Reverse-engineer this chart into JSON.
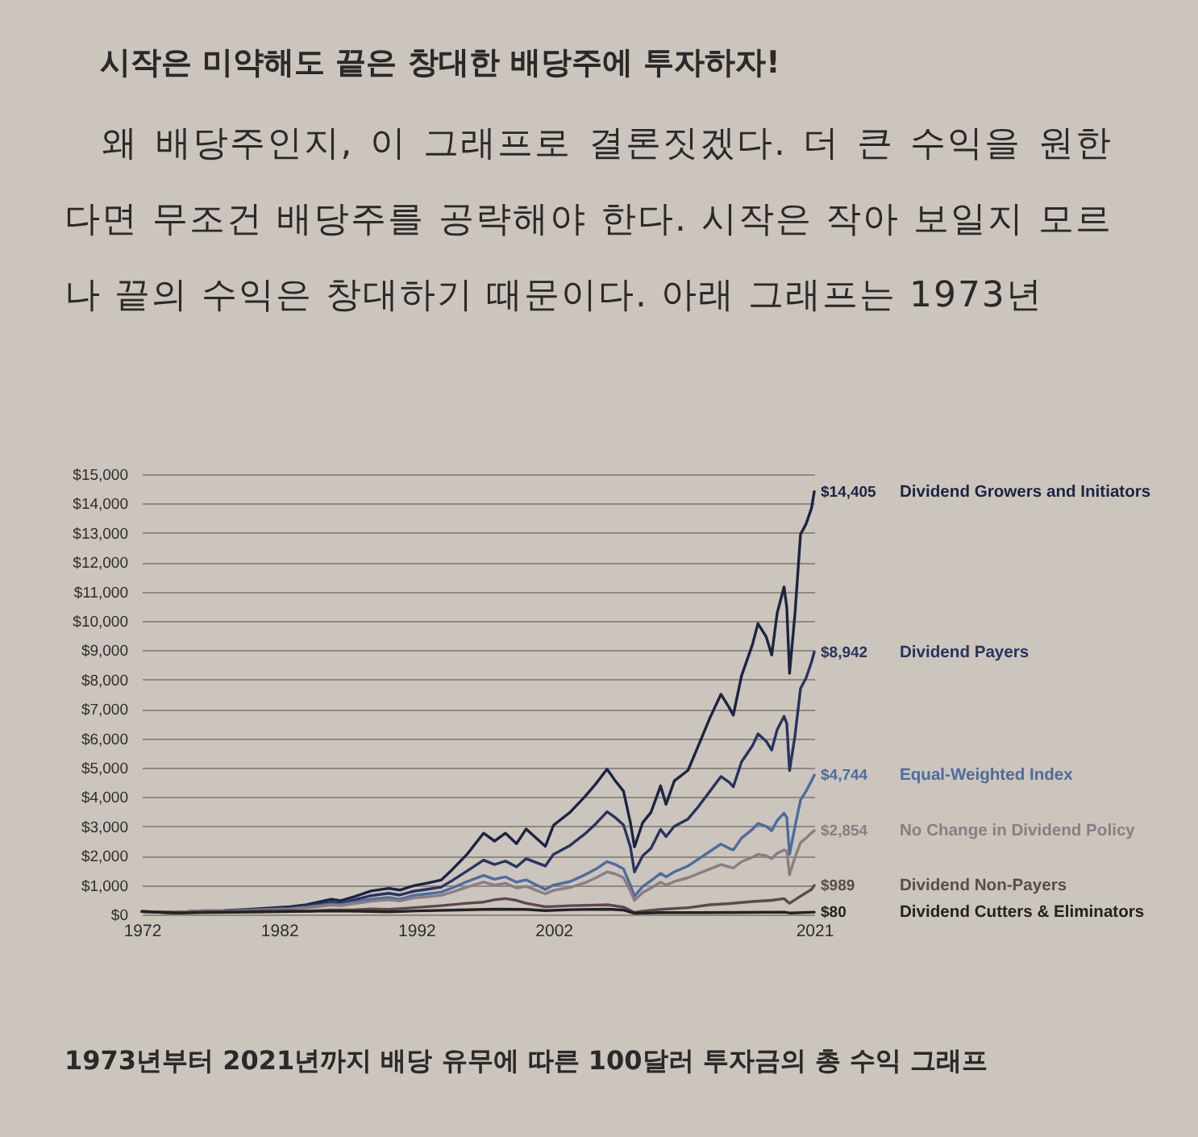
{
  "chart_data": {
    "type": "line",
    "title": "시작은 미약해도 끝은 창대한 배당주에 투자하자!",
    "subtitle": "왜 배당주인지, 이 그래프로 결론짓겠다. 더 큰 수익을 원한다면 무조건 배당주를 공략해야 한다. 시작은 작아 보일지 모르나 끝의 수익은 창대하기 때문이다. 아래 그래프는 1973년",
    "annotations": [
      "1973년부터 2021년까지 배당 유무에 따른 100달러 투자금의 총 수익 그래프"
    ],
    "xlim": [
      1972,
      2021
    ],
    "xticks": [
      1972,
      1982,
      1992,
      2002,
      2021
    ],
    "ylim": [
      0,
      15000
    ],
    "yticks": [
      {
        "value": 0,
        "label": "$0"
      },
      {
        "value": 1000,
        "label": "$1,000"
      },
      {
        "value": 2000,
        "label": "$2,000"
      },
      {
        "value": 3000,
        "label": "$3,000"
      },
      {
        "value": 4000,
        "label": "$4,000"
      },
      {
        "value": 5000,
        "label": "$5,000"
      },
      {
        "value": 6000,
        "label": "$6,000"
      },
      {
        "value": 7000,
        "label": "$7,000"
      },
      {
        "value": 8000,
        "label": "$8,000"
      },
      {
        "value": 9000,
        "label": "$9,000"
      },
      {
        "value": 10000,
        "label": "$10,000"
      },
      {
        "value": 11000,
        "label": "$11,000"
      },
      {
        "value": 12000,
        "label": "$12,000"
      },
      {
        "value": 13000,
        "label": "$13,000"
      },
      {
        "value": 14000,
        "label": "$14,000"
      },
      {
        "value": 15000,
        "label": "$15,000"
      }
    ],
    "grid": "y",
    "legend": false,
    "series": [
      {
        "name": "Dividend Growers and Initiators",
        "color": "#1c2442",
        "x": [
          1972,
          1974.5,
          1976,
          1978,
          1980,
          1982.8,
          1984,
          1985.8,
          1986.5,
          1987.5,
          1988.7,
          1990,
          1990.8,
          1991.8,
          1992.8,
          1993.8,
          1994.6,
          1995.7,
          1996.9,
          1997.7,
          1998.5,
          1999.3,
          2000,
          2001.4,
          2002,
          2003.2,
          2004.3,
          2005.1,
          2005.9,
          2006.5,
          2007.1,
          2007.6,
          2007.9,
          2008.5,
          2009.1,
          2009.8,
          2010.2,
          2010.8,
          2011.8,
          2012.6,
          2013.4,
          2014.2,
          2014.8,
          2015.1,
          2015.7,
          2016.5,
          2016.9,
          2017.5,
          2017.9,
          2018.3,
          2018.8,
          2019,
          2019.2,
          2019.6,
          2020,
          2020.4,
          2020.8,
          2021
        ],
        "values": [
          100,
          70,
          120,
          130,
          180,
          260,
          330,
          520,
          470,
          610,
          800,
          890,
          830,
          980,
          1070,
          1170,
          1520,
          2050,
          2770,
          2500,
          2770,
          2410,
          2910,
          2320,
          3040,
          3480,
          4020,
          4460,
          4950,
          4550,
          4200,
          3130,
          2300,
          3130,
          3480,
          4380,
          3750,
          4550,
          4910,
          5800,
          6700,
          7500,
          7050,
          6790,
          8130,
          9200,
          9910,
          9460,
          8840,
          10270,
          11160,
          10450,
          8210,
          10270,
          12950,
          13300,
          13840,
          14405
        ],
        "value_labels": [
          null,
          null,
          null,
          null,
          null,
          null,
          null,
          null,
          null,
          null,
          null,
          null,
          null,
          null,
          null,
          null,
          null,
          null,
          null,
          null,
          null,
          null,
          null,
          null,
          null,
          null,
          null,
          null,
          null,
          null,
          null,
          null,
          null,
          null,
          null,
          null,
          null,
          null,
          null,
          null,
          null,
          null,
          null,
          null,
          null,
          null,
          null,
          null,
          null,
          null,
          null,
          null,
          null,
          null,
          null,
          null,
          null,
          "$14,405"
        ]
      },
      {
        "name": "Dividend Payers",
        "color": "#28345e",
        "x": [
          1972,
          1974.5,
          1976,
          1978,
          1980,
          1982.8,
          1984,
          1985.8,
          1986.5,
          1987.5,
          1988.7,
          1990,
          1990.8,
          1991.8,
          1992.8,
          1993.8,
          1994.6,
          1995.7,
          1996.9,
          1997.7,
          1998.5,
          1999.3,
          2000,
          2001.4,
          2002,
          2003.2,
          2004.3,
          2005.1,
          2005.9,
          2006.5,
          2007.1,
          2007.6,
          2007.9,
          2008.5,
          2009.1,
          2009.8,
          2010.2,
          2010.8,
          2011.8,
          2012.6,
          2013.4,
          2014.2,
          2014.8,
          2015.1,
          2015.7,
          2016.5,
          2016.9,
          2017.5,
          2017.9,
          2018.3,
          2018.8,
          2019,
          2019.2,
          2019.6,
          2020,
          2020.4,
          2020.8,
          2021
        ],
        "values": [
          100,
          70,
          110,
          120,
          160,
          230,
          290,
          420,
          390,
          500,
          640,
          720,
          660,
          790,
          860,
          930,
          1150,
          1480,
          1850,
          1700,
          1820,
          1620,
          1900,
          1650,
          2050,
          2350,
          2750,
          3100,
          3500,
          3300,
          3050,
          2300,
          1450,
          2000,
          2250,
          2900,
          2650,
          3000,
          3250,
          3700,
          4200,
          4700,
          4500,
          4350,
          5200,
          5750,
          6150,
          5900,
          5600,
          6300,
          6750,
          6500,
          4900,
          6100,
          7700,
          8050,
          8600,
          8942
        ],
        "value_labels": [
          null,
          null,
          null,
          null,
          null,
          null,
          null,
          null,
          null,
          null,
          null,
          null,
          null,
          null,
          null,
          null,
          null,
          null,
          null,
          null,
          null,
          null,
          null,
          null,
          null,
          null,
          null,
          null,
          null,
          null,
          null,
          null,
          null,
          null,
          null,
          null,
          null,
          null,
          null,
          null,
          null,
          null,
          null,
          null,
          null,
          null,
          null,
          null,
          null,
          null,
          null,
          null,
          null,
          null,
          null,
          null,
          null,
          "$8,942"
        ]
      },
      {
        "name": "Equal-Weighted Index",
        "color": "#4e6c9c",
        "x": [
          1972,
          1974.5,
          1976,
          1978,
          1980,
          1982.8,
          1984,
          1985.8,
          1986.5,
          1987.5,
          1988.7,
          1990,
          1990.8,
          1991.8,
          1992.8,
          1993.8,
          1994.6,
          1995.7,
          1996.9,
          1997.7,
          1998.5,
          1999.3,
          2000,
          2001.4,
          2002,
          2003.2,
          2004.3,
          2005.1,
          2005.9,
          2006.5,
          2007.1,
          2007.6,
          2007.9,
          2008.5,
          2009.1,
          2009.8,
          2010.2,
          2010.8,
          2011.8,
          2012.6,
          2013.4,
          2014.2,
          2014.8,
          2015.1,
          2015.7,
          2016.5,
          2016.9,
          2017.5,
          2017.9,
          2018.3,
          2018.8,
          2019,
          2019.2,
          2019.6,
          2020,
          2020.4,
          2020.8,
          2021
        ],
        "values": [
          100,
          60,
          110,
          120,
          150,
          200,
          250,
          360,
          340,
          420,
          520,
          580,
          520,
          650,
          700,
          760,
          900,
          1120,
          1330,
          1200,
          1280,
          1100,
          1180,
          850,
          1000,
          1120,
          1350,
          1550,
          1800,
          1700,
          1550,
          1000,
          620,
          950,
          1150,
          1400,
          1280,
          1450,
          1650,
          1900,
          2150,
          2400,
          2250,
          2200,
          2600,
          2900,
          3100,
          3000,
          2850,
          3200,
          3450,
          3300,
          2050,
          3000,
          3900,
          4200,
          4550,
          4744
        ],
        "value_labels": [
          null,
          null,
          null,
          null,
          null,
          null,
          null,
          null,
          null,
          null,
          null,
          null,
          null,
          null,
          null,
          null,
          null,
          null,
          null,
          null,
          null,
          null,
          null,
          null,
          null,
          null,
          null,
          null,
          null,
          null,
          null,
          null,
          null,
          null,
          null,
          null,
          null,
          null,
          null,
          null,
          null,
          null,
          null,
          null,
          null,
          null,
          null,
          null,
          null,
          null,
          null,
          null,
          null,
          null,
          null,
          null,
          null,
          "$4,744"
        ]
      },
      {
        "name": "No Change in Dividend Policy",
        "color": "#8a7d85",
        "x": [
          1972,
          1974.5,
          1976,
          1978,
          1980,
          1982.8,
          1984,
          1985.8,
          1986.5,
          1987.5,
          1988.7,
          1990,
          1990.8,
          1991.8,
          1992.8,
          1993.8,
          1994.6,
          1995.7,
          1996.9,
          1997.7,
          1998.5,
          1999.3,
          2000,
          2001.4,
          2002,
          2003.2,
          2004.3,
          2005.1,
          2005.9,
          2006.5,
          2007.1,
          2007.6,
          2007.9,
          2008.5,
          2009.1,
          2009.8,
          2010.2,
          2010.8,
          2011.8,
          2012.6,
          2013.4,
          2014.2,
          2014.8,
          2015.1,
          2015.7,
          2016.5,
          2016.9,
          2017.5,
          2017.9,
          2018.3,
          2018.8,
          2019,
          2019.2,
          2019.6,
          2020,
          2020.4,
          2020.8,
          2021
        ],
        "values": [
          100,
          70,
          110,
          110,
          140,
          180,
          220,
          320,
          300,
          370,
          450,
          500,
          460,
          560,
          600,
          650,
          760,
          930,
          1100,
          1000,
          1060,
          900,
          960,
          700,
          820,
          920,
          1080,
          1250,
          1450,
          1380,
          1250,
          800,
          480,
          750,
          900,
          1100,
          1000,
          1120,
          1250,
          1400,
          1550,
          1700,
          1620,
          1580,
          1800,
          1950,
          2050,
          2000,
          1900,
          2080,
          2200,
          2150,
          1350,
          1950,
          2450,
          2600,
          2780,
          2854
        ],
        "value_labels": [
          null,
          null,
          null,
          null,
          null,
          null,
          null,
          null,
          null,
          null,
          null,
          null,
          null,
          null,
          null,
          null,
          null,
          null,
          null,
          null,
          null,
          null,
          null,
          null,
          null,
          null,
          null,
          null,
          null,
          null,
          null,
          null,
          null,
          null,
          null,
          null,
          null,
          null,
          null,
          null,
          null,
          null,
          null,
          null,
          null,
          null,
          null,
          null,
          null,
          null,
          null,
          null,
          null,
          null,
          null,
          null,
          null,
          "$2,854"
        ]
      },
      {
        "name": "Dividend Non-Payers",
        "color": "#5c4a4f",
        "x": [
          1972,
          1974.5,
          1976,
          1978,
          1980,
          1982.8,
          1984,
          1985.8,
          1987.5,
          1988.7,
          1990,
          1991.8,
          1993.8,
          1995.7,
          1996.9,
          1997.7,
          1998.5,
          1999.3,
          2000,
          2001.4,
          2002,
          2003.2,
          2004.3,
          2005.1,
          2005.9,
          2007.1,
          2007.9,
          2008.5,
          2009.8,
          2011.8,
          2013.4,
          2014.8,
          2016.5,
          2017.9,
          2018.8,
          2019.2,
          2020,
          2020.8,
          2021
        ],
        "values": [
          100,
          50,
          80,
          90,
          120,
          130,
          110,
          150,
          160,
          190,
          170,
          230,
          300,
          380,
          420,
          500,
          540,
          480,
          380,
          260,
          270,
          300,
          310,
          320,
          330,
          250,
          70,
          110,
          170,
          230,
          330,
          370,
          440,
          480,
          540,
          380,
          620,
          850,
          989
        ],
        "value_labels": [
          null,
          null,
          null,
          null,
          null,
          null,
          null,
          null,
          null,
          null,
          null,
          null,
          null,
          null,
          null,
          null,
          null,
          null,
          null,
          null,
          null,
          null,
          null,
          null,
          null,
          null,
          null,
          null,
          null,
          null,
          null,
          null,
          null,
          null,
          null,
          null,
          null,
          null,
          "$989"
        ]
      },
      {
        "name": "Dividend Cutters & Eliminators",
        "color": "#232222",
        "x": [
          1972,
          1974.5,
          1977,
          1980,
          1983,
          1986,
          1988,
          1990,
          1992,
          1995,
          1997.7,
          2000,
          2001.4,
          2003.2,
          2005.9,
          2007.1,
          2007.9,
          2009.8,
          2012.6,
          2015.7,
          2018.8,
          2019.2,
          2021
        ],
        "values": [
          100,
          50,
          70,
          80,
          100,
          120,
          110,
          90,
          120,
          150,
          180,
          170,
          130,
          160,
          180,
          150,
          40,
          60,
          60,
          70,
          80,
          50,
          80
        ],
        "value_labels": [
          null,
          null,
          null,
          null,
          null,
          null,
          null,
          null,
          null,
          null,
          null,
          null,
          null,
          null,
          null,
          null,
          null,
          null,
          null,
          null,
          null,
          null,
          "$80"
        ]
      }
    ]
  }
}
